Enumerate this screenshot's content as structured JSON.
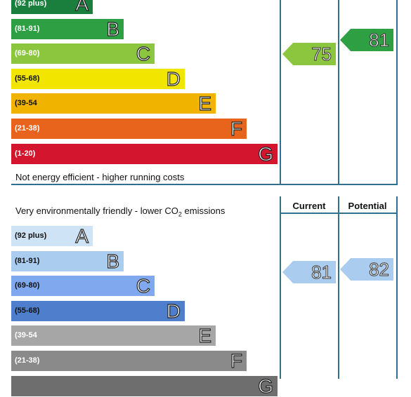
{
  "energy": {
    "footer": "Not energy efficient - higher running costs",
    "bands": [
      {
        "range": "(92 plus)",
        "letter": "A",
        "color": "#1a7f3c",
        "text": "dark"
      },
      {
        "range": "(81-91)",
        "letter": "B",
        "color": "#2ea043",
        "text": "dark"
      },
      {
        "range": "(69-80)",
        "letter": "C",
        "color": "#8cc63f",
        "text": "dark"
      },
      {
        "range": "(55-68)",
        "letter": "D",
        "color": "#f2e600",
        "text": "light"
      },
      {
        "range": "(39-54",
        "letter": "E",
        "color": "#f0b400",
        "text": "light"
      },
      {
        "range": "(21-38)",
        "letter": "F",
        "color": "#e8641c",
        "text": "dark"
      },
      {
        "range": "(1-20)",
        "letter": "G",
        "color": "#d4152e",
        "text": "dark"
      }
    ],
    "current": {
      "value": "75",
      "color": "#8cc63f"
    },
    "potential": {
      "value": "81",
      "color": "#2ea043"
    }
  },
  "environment": {
    "header_prefix": "Very environmentally friendly - lower CO",
    "header_sub": "2",
    "header_suffix": " emissions",
    "col_current": "Current",
    "col_potential": "Potential",
    "bands": [
      {
        "range": "(92 plus)",
        "letter": "A",
        "color": "#cfe3f6",
        "text": "light"
      },
      {
        "range": "(81-91)",
        "letter": "B",
        "color": "#a9ccef",
        "text": "light"
      },
      {
        "range": "(69-80)",
        "letter": "C",
        "color": "#7fa8ee",
        "text": "light"
      },
      {
        "range": "(55-68)",
        "letter": "D",
        "color": "#4f7fcc",
        "text": "light"
      },
      {
        "range": "(39-54",
        "letter": "E",
        "color": "#a6a6a6",
        "text": "dark"
      },
      {
        "range": "(21-38)",
        "letter": "F",
        "color": "#8a8a8a",
        "text": "dark"
      },
      {
        "range": "",
        "letter": "G",
        "color": "#6e6e6e",
        "text": "dark"
      }
    ],
    "current": {
      "value": "81",
      "color": "#a9ccef"
    },
    "potential": {
      "value": "82",
      "color": "#a9ccef"
    }
  },
  "chart_data": [
    {
      "type": "bar",
      "categories": [
        "A",
        "B",
        "C",
        "D",
        "E",
        "F",
        "G"
      ],
      "ranges": [
        "(92 plus)",
        "(81-91)",
        "(69-80)",
        "(55-68)",
        "(39-54",
        "(21-38)",
        "(1-20)"
      ],
      "footer": "Not energy efficient - higher running costs",
      "current": 75,
      "potential": 81
    },
    {
      "type": "bar",
      "categories": [
        "A",
        "B",
        "C",
        "D",
        "E",
        "F",
        "G"
      ],
      "ranges": [
        "(92 plus)",
        "(81-91)",
        "(69-80)",
        "(55-68)",
        "(39-54",
        "(21-38)",
        ""
      ],
      "title": "Very environmentally friendly - lower CO2 emissions",
      "columns": [
        "Current",
        "Potential"
      ],
      "current": 81,
      "potential": 82
    }
  ]
}
